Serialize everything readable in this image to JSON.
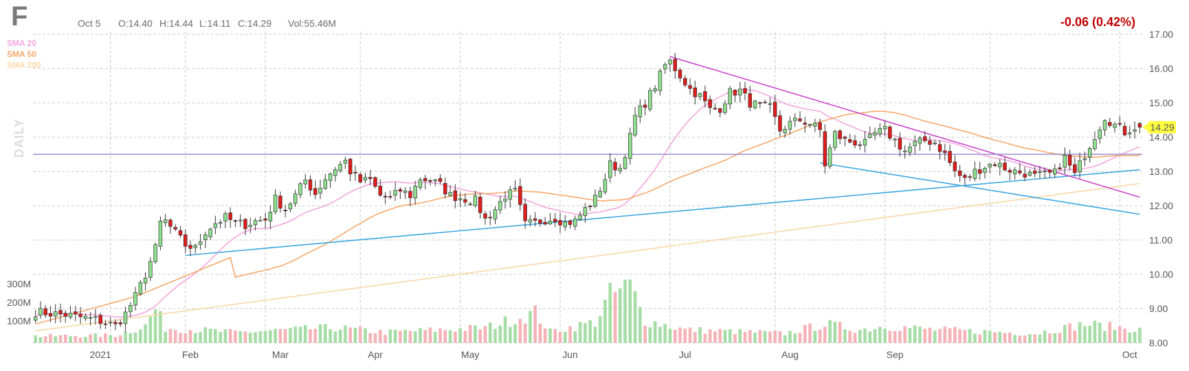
{
  "header": {
    "ticker": "F",
    "date": "Oct 5",
    "open": "O:14.40",
    "high": "H:14.44",
    "low": "L:14.11",
    "close": "C:14.29",
    "volume": "Vol:55.46M",
    "change": "-0.06 (0.42%)"
  },
  "legend": [
    {
      "label": "SMA 20",
      "color": "#f3a6dd"
    },
    {
      "label": "SMA 50",
      "color": "#f7a86a"
    },
    {
      "label": "SMA 200",
      "color": "#f9d8a6"
    }
  ],
  "timeframe_label": "DAILY",
  "price_badge": "14.29",
  "colors": {
    "up": "#00b000",
    "up_fill": "#8ee08e",
    "down": "#cc0000",
    "down_fill": "#e21b1b",
    "vol_up": "#a6dda6",
    "vol_down": "#f5b3b8",
    "grid": "#c8c8c8",
    "trend_magenta": "#cc44cc",
    "trend_blue": "#3aa6e0",
    "hline": "#9a8ed0",
    "badge": "#ffff40"
  },
  "chart_data": {
    "type": "candlestick",
    "symbol": "F",
    "y_axis": {
      "min": 8,
      "max": 17,
      "ticks": [
        "17.00",
        "16.00",
        "15.00",
        "14.00",
        "13.00",
        "12.00",
        "11.00",
        "10.00",
        "9.00",
        "8.00"
      ]
    },
    "volume_axis": {
      "ticks": [
        "300M",
        "200M",
        "100M"
      ]
    },
    "x_axis": {
      "labels": [
        "2021",
        "Feb",
        "Mar",
        "Apr",
        "May",
        "Jun",
        "Jul",
        "Aug",
        "Sep",
        "Oct"
      ]
    },
    "anchors": [
      [
        0,
        8.9
      ],
      [
        6,
        8.82
      ],
      [
        12,
        8.68
      ],
      [
        16,
        8.5
      ],
      [
        18,
        8.85
      ],
      [
        20,
        9.35
      ],
      [
        22,
        10.0
      ],
      [
        24,
        10.75
      ],
      [
        25,
        11.5
      ],
      [
        26,
        11.55
      ],
      [
        28,
        11.2
      ],
      [
        30,
        10.85
      ],
      [
        32,
        10.75
      ],
      [
        34,
        11.25
      ],
      [
        36,
        11.5
      ],
      [
        38,
        11.65
      ],
      [
        40,
        11.5
      ],
      [
        42,
        11.45
      ],
      [
        44,
        11.55
      ],
      [
        46,
        11.6
      ],
      [
        48,
        12.2
      ],
      [
        50,
        11.9
      ],
      [
        52,
        12.3
      ],
      [
        54,
        12.75
      ],
      [
        56,
        12.35
      ],
      [
        58,
        12.8
      ],
      [
        60,
        13.1
      ],
      [
        62,
        13.3
      ],
      [
        63,
        13.0
      ],
      [
        65,
        12.7
      ],
      [
        67,
        12.75
      ],
      [
        69,
        12.3
      ],
      [
        71,
        12.2
      ],
      [
        73,
        12.45
      ],
      [
        75,
        12.3
      ],
      [
        77,
        12.8
      ],
      [
        79,
        12.75
      ],
      [
        81,
        12.6
      ],
      [
        83,
        12.3
      ],
      [
        86,
        12.2
      ],
      [
        88,
        12.15
      ],
      [
        90,
        11.6
      ],
      [
        92,
        11.9
      ],
      [
        94,
        12.3
      ],
      [
        96,
        12.4
      ],
      [
        98,
        11.45
      ],
      [
        100,
        11.5
      ],
      [
        102,
        11.6
      ],
      [
        104,
        11.65
      ],
      [
        106,
        11.5
      ],
      [
        108,
        11.55
      ],
      [
        110,
        11.9
      ],
      [
        112,
        12.2
      ],
      [
        114,
        12.8
      ],
      [
        115,
        13.2
      ],
      [
        117,
        13.1
      ],
      [
        119,
        14.0
      ],
      [
        120,
        14.6
      ],
      [
        122,
        15.0
      ],
      [
        124,
        15.5
      ],
      [
        126,
        16.1
      ],
      [
        127,
        16.2
      ],
      [
        129,
        15.8
      ],
      [
        131,
        15.4
      ],
      [
        133,
        15.2
      ],
      [
        135,
        14.8
      ],
      [
        137,
        14.85
      ],
      [
        139,
        15.3
      ],
      [
        141,
        15.35
      ],
      [
        143,
        15.0
      ],
      [
        145,
        14.9
      ],
      [
        147,
        14.85
      ],
      [
        149,
        14.2
      ],
      [
        151,
        14.4
      ],
      [
        153,
        14.5
      ],
      [
        155,
        14.4
      ],
      [
        157,
        14.2
      ],
      [
        158,
        13.2
      ],
      [
        160,
        14.1
      ],
      [
        162,
        13.9
      ],
      [
        164,
        13.85
      ],
      [
        166,
        13.8
      ],
      [
        168,
        14.1
      ],
      [
        170,
        14.2
      ],
      [
        172,
        13.9
      ],
      [
        174,
        13.6
      ],
      [
        176,
        13.8
      ],
      [
        178,
        13.9
      ],
      [
        180,
        13.85
      ],
      [
        182,
        13.5
      ],
      [
        184,
        13.0
      ],
      [
        186,
        12.75
      ],
      [
        188,
        13.0
      ],
      [
        190,
        13.15
      ],
      [
        192,
        13.25
      ],
      [
        194,
        13.1
      ],
      [
        196,
        13.0
      ],
      [
        198,
        12.95
      ],
      [
        200,
        12.85
      ],
      [
        202,
        12.9
      ],
      [
        204,
        12.95
      ],
      [
        205,
        13.2
      ],
      [
        206,
        13.4
      ],
      [
        208,
        12.9
      ],
      [
        210,
        13.5
      ],
      [
        212,
        14.05
      ],
      [
        214,
        14.6
      ],
      [
        216,
        14.35
      ],
      [
        218,
        14.15
      ],
      [
        220,
        14.3
      ],
      [
        221,
        14.29
      ]
    ],
    "volume_profile": [
      [
        0,
        18
      ],
      [
        16,
        20
      ],
      [
        22,
        45
      ],
      [
        24,
        90
      ],
      [
        26,
        40
      ],
      [
        40,
        28
      ],
      [
        60,
        40
      ],
      [
        70,
        28
      ],
      [
        90,
        40
      ],
      [
        100,
        80
      ],
      [
        103,
        30
      ],
      [
        112,
        55
      ],
      [
        115,
        125
      ],
      [
        119,
        150
      ],
      [
        122,
        60
      ],
      [
        130,
        35
      ],
      [
        150,
        25
      ],
      [
        158,
        50
      ],
      [
        165,
        35
      ],
      [
        170,
        45
      ],
      [
        180,
        35
      ],
      [
        200,
        25
      ],
      [
        210,
        50
      ],
      [
        221,
        35
      ]
    ],
    "indicators": [
      {
        "name": "SMA 20",
        "window": 20
      },
      {
        "name": "SMA 50",
        "window": 50
      },
      {
        "name": "SMA 200",
        "window": 200
      }
    ],
    "trendlines": [
      {
        "name": "uptrend",
        "from": [
          30,
          10.55
        ],
        "to": [
          221,
          13.05
        ]
      },
      {
        "name": "downtrend",
        "from": [
          127,
          16.35
        ],
        "to": [
          221,
          12.25
        ]
      },
      {
        "name": "lower-channel",
        "from": [
          157,
          13.25
        ],
        "to": [
          221,
          11.75
        ]
      }
    ],
    "horizontal_line": {
      "price": 13.5
    }
  }
}
